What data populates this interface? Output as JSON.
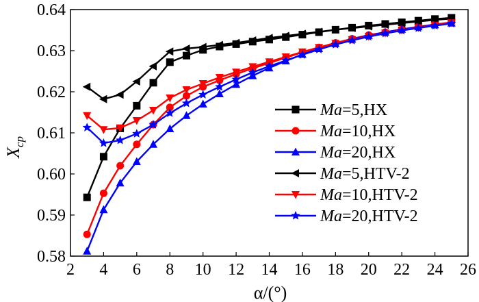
{
  "chart_data": {
    "type": "line",
    "title": "",
    "xlabel": "α/(°)",
    "ylabel": "X",
    "ylabel_sub": "cp",
    "xlim": [
      2,
      26
    ],
    "ylim": [
      0.58,
      0.64
    ],
    "xticks": [
      2,
      4,
      6,
      8,
      10,
      12,
      14,
      16,
      18,
      20,
      22,
      24,
      26
    ],
    "yticks": [
      0.58,
      0.59,
      0.6,
      0.61,
      0.62,
      0.63,
      0.64
    ],
    "ytick_labels": [
      "0.58",
      "0.59",
      "0.60",
      "0.61",
      "0.62",
      "0.63",
      "0.64"
    ],
    "legend_position": "center-right",
    "series": [
      {
        "name": "Ma=5,HX",
        "ma_label": "Ma",
        "suffix": "=5,HX",
        "color": "#000000",
        "marker": "square",
        "x": [
          3,
          4,
          5,
          6,
          7,
          8,
          9,
          10,
          11,
          12,
          13,
          14,
          15,
          16,
          17,
          18,
          19,
          20,
          21,
          22,
          23,
          24,
          25
        ],
        "values": [
          0.5943,
          0.6042,
          0.6111,
          0.6166,
          0.6222,
          0.6272,
          0.6288,
          0.6302,
          0.631,
          0.6316,
          0.6322,
          0.6327,
          0.6333,
          0.6339,
          0.6345,
          0.6351,
          0.6356,
          0.6361,
          0.6365,
          0.6369,
          0.6373,
          0.6377,
          0.638
        ]
      },
      {
        "name": "Ma=10,HX",
        "ma_label": "Ma",
        "suffix": "=10,HX",
        "color": "#ff0000",
        "marker": "circle",
        "x": [
          3,
          4,
          5,
          6,
          7,
          8,
          9,
          10,
          11,
          12,
          13,
          14,
          15,
          16,
          17,
          18,
          19,
          20,
          21,
          22,
          23,
          24,
          25
        ],
        "values": [
          0.5853,
          0.5953,
          0.602,
          0.6072,
          0.612,
          0.6162,
          0.619,
          0.6212,
          0.6228,
          0.6243,
          0.6257,
          0.627,
          0.6283,
          0.6296,
          0.6308,
          0.6319,
          0.6329,
          0.6338,
          0.6345,
          0.6352,
          0.6358,
          0.6364,
          0.6369
        ]
      },
      {
        "name": "Ma=20,HX",
        "ma_label": "Ma",
        "suffix": "=20,HX",
        "color": "#0000ff",
        "marker": "triangle-up",
        "x": [
          3,
          4,
          5,
          6,
          7,
          8,
          9,
          10,
          11,
          12,
          13,
          14,
          15,
          16,
          17,
          18,
          19,
          20,
          21,
          22,
          23,
          24,
          25
        ],
        "values": [
          0.5812,
          0.5913,
          0.5978,
          0.603,
          0.6072,
          0.611,
          0.6142,
          0.617,
          0.6195,
          0.6218,
          0.6239,
          0.6258,
          0.6275,
          0.6291,
          0.6305,
          0.6317,
          0.6328,
          0.6337,
          0.6345,
          0.6352,
          0.6358,
          0.6363,
          0.6367
        ]
      },
      {
        "name": "Ma=5,HTV-2",
        "ma_label": "Ma",
        "suffix": "=5,HTV-2",
        "color": "#000000",
        "marker": "triangle-left",
        "x": [
          3,
          4,
          5,
          6,
          7,
          8,
          9,
          10,
          11,
          12,
          13,
          14,
          15,
          16,
          17,
          18,
          19,
          20,
          21,
          22,
          23,
          24,
          25
        ],
        "values": [
          0.6212,
          0.6182,
          0.6193,
          0.6225,
          0.6262,
          0.6298,
          0.6305,
          0.6309,
          0.6314,
          0.6319,
          0.6325,
          0.6331,
          0.6336,
          0.6341,
          0.6346,
          0.6351,
          0.6355,
          0.6359,
          0.6363,
          0.6367,
          0.6371,
          0.6375,
          0.6378
        ]
      },
      {
        "name": "Ma=10,HTV-2",
        "ma_label": "Ma",
        "suffix": "=10,HTV-2",
        "color": "#ff0000",
        "marker": "triangle-down",
        "x": [
          3,
          4,
          5,
          6,
          7,
          8,
          9,
          10,
          11,
          12,
          13,
          14,
          15,
          16,
          17,
          18,
          19,
          20,
          21,
          22,
          23,
          24,
          25
        ],
        "values": [
          0.6142,
          0.6108,
          0.6112,
          0.613,
          0.6155,
          0.6185,
          0.6205,
          0.622,
          0.6235,
          0.6248,
          0.6261,
          0.6273,
          0.6285,
          0.6297,
          0.6308,
          0.6318,
          0.6327,
          0.6335,
          0.6343,
          0.635,
          0.6356,
          0.6362,
          0.6368
        ]
      },
      {
        "name": "Ma=20,HTV-2",
        "ma_label": "Ma",
        "suffix": "=20,HTV-2",
        "color": "#0000ff",
        "marker": "star",
        "x": [
          3,
          4,
          5,
          6,
          7,
          8,
          9,
          10,
          11,
          12,
          13,
          14,
          15,
          16,
          17,
          18,
          19,
          20,
          21,
          22,
          23,
          24,
          25
        ],
        "values": [
          0.6113,
          0.6075,
          0.6082,
          0.6098,
          0.612,
          0.6148,
          0.6172,
          0.6193,
          0.6212,
          0.623,
          0.6247,
          0.6262,
          0.6276,
          0.629,
          0.6303,
          0.6315,
          0.6325,
          0.6334,
          0.6342,
          0.6349,
          0.6355,
          0.6361,
          0.6366
        ]
      }
    ]
  }
}
